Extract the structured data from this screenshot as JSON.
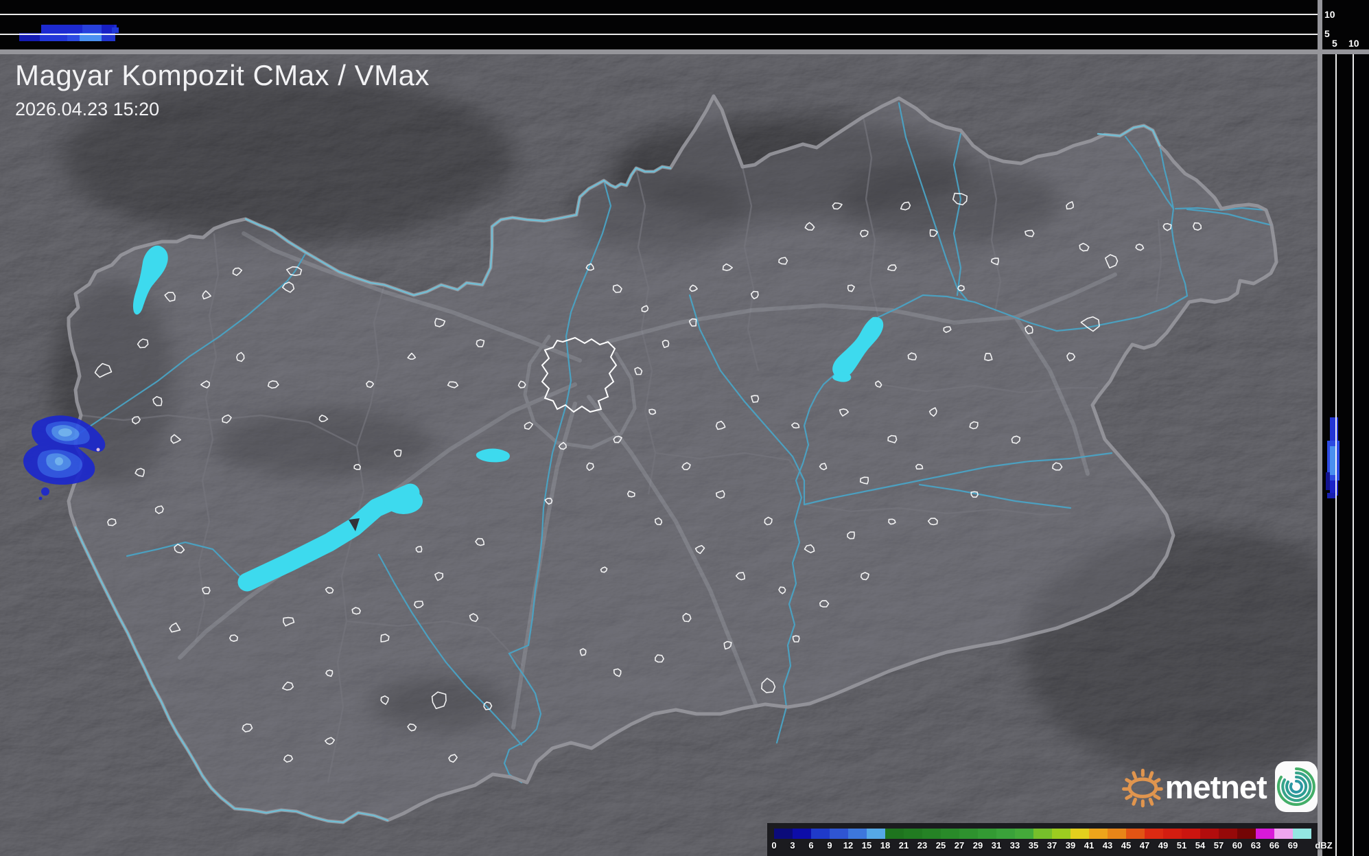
{
  "header": {
    "title": "Magyar Kompozit CMax / VMax",
    "timestamp": "2026.04.23 15:20"
  },
  "profile_panels": {
    "top_axis_labels": [
      "10",
      "5"
    ],
    "right_axis_labels": [
      "5",
      "10"
    ]
  },
  "colorbar": {
    "unit": "dBZ",
    "ticks": [
      "0",
      "3",
      "6",
      "9",
      "12",
      "15",
      "18",
      "21",
      "23",
      "25",
      "27",
      "29",
      "31",
      "33",
      "35",
      "37",
      "39",
      "41",
      "43",
      "45",
      "47",
      "49",
      "51",
      "54",
      "57",
      "60",
      "63",
      "66",
      "69"
    ],
    "colors": [
      "#0b0b7a",
      "#0d0da8",
      "#1f3ac9",
      "#2f55d2",
      "#3d77dc",
      "#55a8e6",
      "#1e741e",
      "#217b21",
      "#258225",
      "#298a29",
      "#2e922e",
      "#339a33",
      "#3aa23a",
      "#44aa3a",
      "#76bf2b",
      "#9ccc20",
      "#e3cf1d",
      "#eda41b",
      "#e88518",
      "#e25414",
      "#dc2a12",
      "#d41d10",
      "#cb150f",
      "#b20d0d",
      "#960909",
      "#740505",
      "#d819d8",
      "#efa5ef",
      "#93e6e2"
    ]
  },
  "branding": {
    "logo_text": "metnet"
  },
  "palette": {
    "lake": "#3ddaee",
    "river": "#4aa3c4",
    "border_river": "#6fc3dc",
    "country_border": "#96969c",
    "county_border": "#74747c",
    "road": "#c9ced6",
    "town_outline": "#ffffff",
    "echo_base": "#1c28cc",
    "echo_mid": "#2f55e6",
    "echo_light": "#4f8ef2",
    "echo_lightest": "#74b8f8",
    "panel_background": "#030304",
    "separator": "#95959a"
  }
}
